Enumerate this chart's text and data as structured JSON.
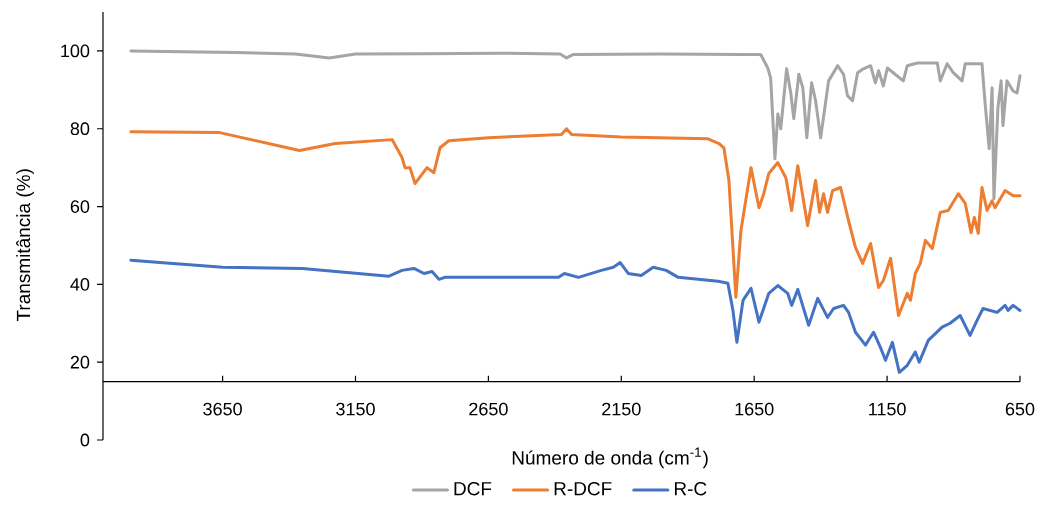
{
  "chart_data": {
    "type": "line",
    "xlabel": "Número de onda (cm$^{-1}$)",
    "ylabel": "Transmitância (%)",
    "xlim": [
      4100,
      650
    ],
    "xticks": [
      3650,
      3150,
      2650,
      2150,
      1650,
      1150,
      650
    ],
    "ylim": [
      0,
      110
    ],
    "yticks": [
      0,
      20,
      40,
      60,
      80,
      100
    ],
    "legend": "bottom",
    "line_style": "solid",
    "series": [
      {
        "name": "DCF",
        "color": "#a5a5a5",
        "x": [
          3995,
          3800,
          3600,
          3376,
          3249,
          3150,
          2900,
          2600,
          2380,
          2356,
          2330,
          2000,
          1700,
          1636,
          1625,
          1599,
          1588,
          1572,
          1561,
          1550,
          1528,
          1512,
          1501,
          1482,
          1467,
          1452,
          1434,
          1419,
          1400,
          1370,
          1336,
          1314,
          1299,
          1280,
          1261,
          1239,
          1212,
          1194,
          1182,
          1164,
          1149,
          1089,
          1074,
          1036,
          961,
          950,
          924,
          901,
          868,
          856,
          793,
          781,
          766,
          755,
          748,
          733,
          721,
          714,
          699,
          676,
          661,
          650
        ],
        "values": [
          100,
          99.8,
          99.6,
          99.2,
          98.2,
          99.2,
          99.3,
          99.4,
          99.2,
          98.2,
          99.1,
          99.2,
          99.1,
          99.1,
          99.0,
          95.6,
          93,
          72.3,
          83.8,
          80,
          95.4,
          89,
          82.6,
          94,
          90.5,
          77.7,
          91.8,
          87.2,
          77.7,
          92.3,
          96.2,
          94,
          88.5,
          87.2,
          94.4,
          95.4,
          96.2,
          91.8,
          94.9,
          91,
          95.6,
          92.3,
          96.2,
          96.9,
          96.9,
          92.3,
          96.7,
          94.4,
          92.3,
          96.7,
          96.7,
          86.4,
          74.9,
          90.5,
          62,
          85.4,
          92.3,
          80.8,
          92.3,
          89.7,
          89.2,
          93.6
        ]
      },
      {
        "name": "R-DCF",
        "color": "#ed7d31",
        "x": [
          3995,
          3661,
          3361,
          3226,
          3012,
          2975,
          2964,
          2945,
          2926,
          2881,
          2855,
          2832,
          2799,
          2649,
          2375,
          2356,
          2337,
          2150,
          1824,
          1782,
          1764,
          1745,
          1719,
          1700,
          1662,
          1632,
          1614,
          1595,
          1561,
          1531,
          1509,
          1486,
          1449,
          1419,
          1404,
          1389,
          1374,
          1355,
          1325,
          1295,
          1269,
          1242,
          1212,
          1182,
          1164,
          1137,
          1107,
          1074,
          1062,
          1044,
          1025,
          1006,
          980,
          950,
          920,
          882,
          856,
          834,
          822,
          807,
          793,
          774,
          755,
          744,
          706,
          676,
          650
        ],
        "values": [
          79.2,
          79,
          74.4,
          76.2,
          77.2,
          72.6,
          70,
          70,
          65.9,
          70,
          68.7,
          75.1,
          76.9,
          77.7,
          78.5,
          80,
          78.5,
          77.9,
          77.4,
          76.2,
          75.1,
          66.7,
          36.7,
          53.8,
          70,
          59.7,
          63.3,
          68.5,
          71.3,
          67.4,
          59,
          70.5,
          55.1,
          66.7,
          58.5,
          63.3,
          58.5,
          64.1,
          64.9,
          56.4,
          49.5,
          45.4,
          50.5,
          39.2,
          41,
          46.7,
          32,
          37.7,
          35.9,
          42.8,
          45.4,
          51.3,
          49.2,
          58.5,
          59,
          63.3,
          60.8,
          53.3,
          57.2,
          53.1,
          64.9,
          59,
          61.5,
          59.7,
          64.1,
          62.8,
          62.8
        ]
      },
      {
        "name": "R-C",
        "color": "#4472c4",
        "x": [
          3995,
          3849,
          3650,
          3350,
          3024,
          2975,
          2930,
          2892,
          2862,
          2836,
          2814,
          2386,
          2364,
          2311,
          2225,
          2180,
          2154,
          2124,
          2075,
          2030,
          1981,
          1936,
          1786,
          1749,
          1730,
          1715,
          1692,
          1662,
          1632,
          1595,
          1561,
          1524,
          1509,
          1486,
          1445,
          1411,
          1374,
          1351,
          1314,
          1295,
          1269,
          1231,
          1201,
          1175,
          1156,
          1130,
          1104,
          1074,
          1044,
          1029,
          995,
          943,
          913,
          875,
          838,
          811,
          789,
          736,
          706,
          695,
          676,
          650
        ],
        "values": [
          46.2,
          45.4,
          44.4,
          44.1,
          42.1,
          43.6,
          44.1,
          42.8,
          43.3,
          41.3,
          41.8,
          41.8,
          42.8,
          41.8,
          43.6,
          44.4,
          45.6,
          42.8,
          42.3,
          44.4,
          43.6,
          41.8,
          40.8,
          40.3,
          33.3,
          25.1,
          35.9,
          39,
          30.3,
          37.7,
          39.7,
          37.7,
          34.6,
          38.7,
          29.5,
          36.4,
          31.5,
          33.8,
          34.6,
          32.8,
          27.7,
          24.4,
          27.7,
          23.8,
          20.5,
          25.1,
          17.4,
          19.2,
          22.6,
          20,
          25.6,
          29,
          30,
          32,
          26.9,
          30.8,
          33.8,
          32.8,
          34.6,
          33.3,
          34.6,
          33.3
        ]
      }
    ]
  }
}
